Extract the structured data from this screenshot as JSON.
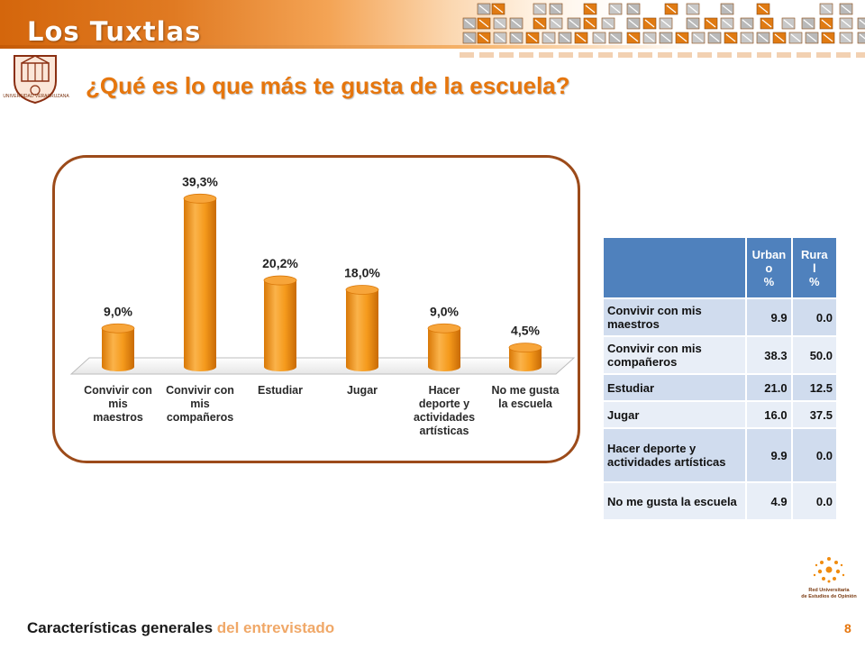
{
  "header": {
    "title": "Los Tuxtlas"
  },
  "logo": {
    "caption": "UNIVERSIDAD VERACRUZANA"
  },
  "page_title": "¿Qué es lo que más te gusta de la escuela?",
  "chart_data": {
    "type": "bar",
    "categories": [
      "Convivir con mis maestros",
      "Convivir con mis compañeros",
      "Estudiar",
      "Jugar",
      "Hacer deporte y actividades artísticas",
      "No me gusta la escuela"
    ],
    "category_lines": [
      [
        "Convivir con",
        "mis",
        "maestros"
      ],
      [
        "Convivir con",
        "mis",
        "compañeros"
      ],
      [
        "Estudiar"
      ],
      [
        "Jugar"
      ],
      [
        "Hacer",
        "deporte y",
        "actividades",
        "artísticas"
      ],
      [
        "No me gusta",
        "la escuela"
      ]
    ],
    "values": [
      9.0,
      39.3,
      20.2,
      18.0,
      9.0,
      4.5
    ],
    "data_labels": [
      "9,0%",
      "39,3%",
      "20,2%",
      "18,0%",
      "9,0%",
      "4,5%"
    ],
    "ylim": [
      0,
      40
    ],
    "colors": {
      "bar": "#f08c10",
      "bar_light": "#fbc36a",
      "bar_dark": "#c86a05"
    }
  },
  "table": {
    "header": [
      "",
      "Urbano %",
      "Rural %"
    ],
    "header_lines": [
      [
        "Urban",
        "o",
        "%"
      ],
      [
        "Rura",
        "l",
        "%"
      ]
    ],
    "rows": [
      {
        "label": "Convivir con mis maestros",
        "urbano": "9.9",
        "rural": "0.0"
      },
      {
        "label": "Convivir con mis compañeros",
        "urbano": "38.3",
        "rural": "50.0"
      },
      {
        "label": "Estudiar",
        "urbano": "21.0",
        "rural": "12.5"
      },
      {
        "label": "Jugar",
        "urbano": "16.0",
        "rural": "37.5"
      },
      {
        "label": "Hacer deporte y actividades artísticas",
        "urbano": "9.9",
        "rural": "0.0"
      },
      {
        "label": "No me gusta la escuela",
        "urbano": "4.9",
        "rural": "0.0"
      }
    ]
  },
  "red_logo": {
    "line1": "Red Universitaria",
    "line2": "de Estudios de Opinión"
  },
  "footer": {
    "bold": "Características generales",
    "light": " del entrevistado"
  },
  "page_number": "8"
}
